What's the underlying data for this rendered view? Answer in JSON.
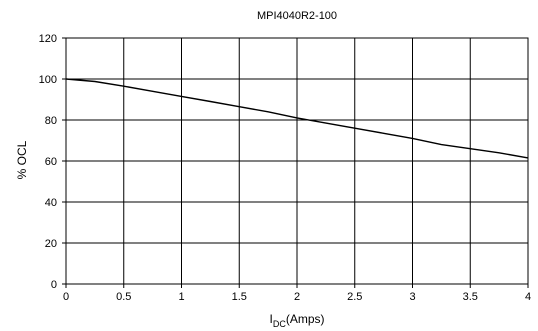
{
  "chart_data": {
    "type": "line",
    "title": "MPI4040R2-100",
    "ylabel": "% OCL",
    "xlabel_main": "I",
    "xlabel_sub": "DC",
    "xlabel_rest": "(Amps)",
    "xlim": [
      0,
      4
    ],
    "ylim": [
      0,
      120
    ],
    "xticks": [
      "0",
      "0.5",
      "1",
      "1.5",
      "2",
      "2.5",
      "3",
      "3.5",
      "4"
    ],
    "yticks": [
      "0",
      "20",
      "40",
      "60",
      "80",
      "100",
      "120"
    ],
    "grid": true,
    "series": [
      {
        "x": [
          0,
          0.25,
          0.5,
          0.75,
          1.0,
          1.25,
          1.5,
          1.75,
          2.0,
          2.25,
          2.5,
          2.75,
          3.0,
          3.25,
          3.5,
          3.75,
          4.0
        ],
        "y": [
          100,
          98.8,
          96.5,
          94,
          91.5,
          89,
          86.5,
          84,
          81,
          78.5,
          76,
          73.5,
          71,
          68,
          66,
          64,
          61.5
        ],
        "color": "#000000"
      }
    ]
  }
}
